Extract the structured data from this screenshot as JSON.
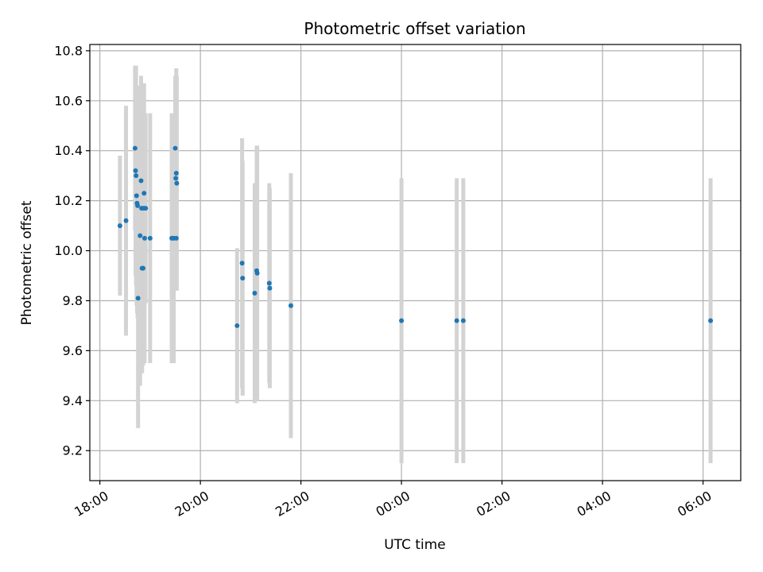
{
  "chart_data": {
    "type": "scatter",
    "title": "Photometric offset variation",
    "xlabel": "UTC time",
    "ylabel": "Photometric offset",
    "x_unit": "hours after 18:00 UTC",
    "xlim": [
      -0.2,
      12.75
    ],
    "ylim": [
      9.08,
      10.825
    ],
    "x_ticks": [
      {
        "value": 0,
        "label": "18:00"
      },
      {
        "value": 2,
        "label": "20:00"
      },
      {
        "value": 4,
        "label": "22:00"
      },
      {
        "value": 6,
        "label": "00:00"
      },
      {
        "value": 8,
        "label": "02:00"
      },
      {
        "value": 10,
        "label": "04:00"
      },
      {
        "value": 12,
        "label": "06:00"
      }
    ],
    "y_ticks": [
      {
        "value": 9.2,
        "label": "9.2"
      },
      {
        "value": 9.4,
        "label": "9.4"
      },
      {
        "value": 9.6,
        "label": "9.6"
      },
      {
        "value": 9.8,
        "label": "9.8"
      },
      {
        "value": 10.0,
        "label": "10.0"
      },
      {
        "value": 10.2,
        "label": "10.2"
      },
      {
        "value": 10.4,
        "label": "10.4"
      },
      {
        "value": 10.6,
        "label": "10.6"
      },
      {
        "value": 10.8,
        "label": "10.8"
      }
    ],
    "grid": true,
    "colors": {
      "points": "#1f77b4",
      "errorbars": "#d3d3d3",
      "grid": "#b0b0b0"
    },
    "points": [
      {
        "x": 0.4,
        "y": 10.1,
        "err": 0.28
      },
      {
        "x": 0.52,
        "y": 10.12,
        "err": 0.46
      },
      {
        "x": 0.7,
        "y": 10.41,
        "err": 0.33
      },
      {
        "x": 0.71,
        "y": 10.32,
        "err": 0.42
      },
      {
        "x": 0.72,
        "y": 10.3,
        "err": 0.44
      },
      {
        "x": 0.73,
        "y": 10.22,
        "err": 0.44
      },
      {
        "x": 0.74,
        "y": 10.19,
        "err": 0.44
      },
      {
        "x": 0.75,
        "y": 10.18,
        "err": 0.45
      },
      {
        "x": 0.76,
        "y": 9.81,
        "err": 0.52
      },
      {
        "x": 0.8,
        "y": 10.06,
        "err": 0.6
      },
      {
        "x": 0.82,
        "y": 10.28,
        "err": 0.42
      },
      {
        "x": 0.83,
        "y": 10.17,
        "err": 0.42
      },
      {
        "x": 0.84,
        "y": 9.93,
        "err": 0.42
      },
      {
        "x": 0.86,
        "y": 9.93,
        "err": 0.39
      },
      {
        "x": 0.87,
        "y": 10.17,
        "err": 0.4
      },
      {
        "x": 0.88,
        "y": 10.23,
        "err": 0.44
      },
      {
        "x": 0.89,
        "y": 10.05,
        "err": 0.5
      },
      {
        "x": 0.91,
        "y": 10.17,
        "err": 0.38
      },
      {
        "x": 1.0,
        "y": 10.05,
        "err": 0.5
      },
      {
        "x": 1.43,
        "y": 10.05,
        "err": 0.5
      },
      {
        "x": 1.47,
        "y": 10.05,
        "err": 0.5
      },
      {
        "x": 1.5,
        "y": 10.41,
        "err": 0.29
      },
      {
        "x": 1.51,
        "y": 10.29,
        "err": 0.41
      },
      {
        "x": 1.52,
        "y": 10.31,
        "err": 0.42
      },
      {
        "x": 1.53,
        "y": 10.27,
        "err": 0.43
      },
      {
        "x": 1.52,
        "y": 10.05,
        "err": 0.17
      },
      {
        "x": 2.73,
        "y": 9.7,
        "err": 0.31
      },
      {
        "x": 2.83,
        "y": 9.95,
        "err": 0.5
      },
      {
        "x": 2.84,
        "y": 9.89,
        "err": 0.47
      },
      {
        "x": 3.08,
        "y": 9.83,
        "err": 0.44
      },
      {
        "x": 3.12,
        "y": 9.92,
        "err": 0.5
      },
      {
        "x": 3.13,
        "y": 9.91,
        "err": 0.51
      },
      {
        "x": 3.37,
        "y": 9.87,
        "err": 0.4
      },
      {
        "x": 3.38,
        "y": 9.85,
        "err": 0.4
      },
      {
        "x": 3.8,
        "y": 9.78,
        "err": 0.53
      },
      {
        "x": 6.0,
        "y": 9.72,
        "err": 0.57
      },
      {
        "x": 7.1,
        "y": 9.72,
        "err": 0.57
      },
      {
        "x": 7.23,
        "y": 9.72,
        "err": 0.57
      },
      {
        "x": 12.15,
        "y": 9.72,
        "err": 0.57
      }
    ]
  }
}
